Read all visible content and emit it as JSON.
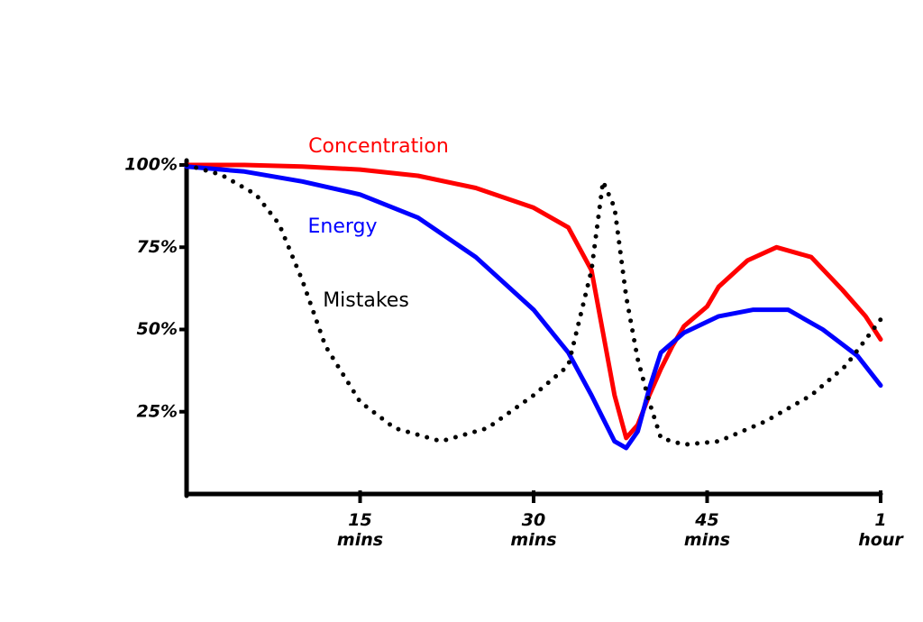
{
  "chart_data": {
    "type": "line",
    "xlim": [
      0,
      60
    ],
    "ylim": [
      0,
      100
    ],
    "xticks": [
      {
        "value": 15,
        "label": "15 mins"
      },
      {
        "value": 30,
        "label": "30 mins"
      },
      {
        "value": 45,
        "label": "45 mins"
      },
      {
        "value": 60,
        "label": "1 hour"
      }
    ],
    "yticks": [
      {
        "value": 25,
        "label": "25%"
      },
      {
        "value": 50,
        "label": "50%"
      },
      {
        "value": 75,
        "label": "75%"
      },
      {
        "value": 100,
        "label": "100%"
      }
    ],
    "series": [
      {
        "name": "Concentration",
        "color": "#ff0000",
        "style": "solid",
        "x": [
          0,
          5,
          10,
          15,
          20,
          25,
          30,
          33,
          35,
          36,
          37,
          38,
          39,
          40,
          41,
          42,
          43,
          45,
          46,
          48.5,
          51,
          54,
          56.7,
          58.7,
          60
        ],
        "values": [
          100,
          100,
          99.5,
          98.6,
          96.7,
          93,
          87,
          81,
          68,
          49,
          30,
          17,
          21,
          30,
          38,
          45,
          51,
          57,
          63,
          71,
          75,
          72,
          62,
          54,
          47
        ]
      },
      {
        "name": "Energy",
        "color": "#0000ff",
        "style": "solid",
        "x": [
          0,
          5,
          10,
          15,
          20,
          25,
          30,
          33,
          35,
          36,
          37,
          38,
          39,
          40,
          41,
          43,
          46,
          49,
          52,
          55,
          58,
          60
        ],
        "values": [
          99.5,
          98,
          95,
          91,
          84,
          72,
          56,
          43,
          30,
          23,
          16,
          14,
          19,
          32,
          43,
          49,
          54,
          56,
          56,
          50,
          42,
          33
        ]
      },
      {
        "name": "Mistakes",
        "color": "#000000",
        "style": "dotted",
        "x": [
          0,
          3,
          6,
          8,
          10,
          12,
          15,
          18,
          22,
          26,
          30,
          33,
          35,
          36,
          37,
          38,
          39,
          40,
          41,
          43,
          46,
          50,
          54,
          57,
          60
        ],
        "values": [
          100,
          97,
          91,
          82,
          65,
          45,
          28,
          20,
          16,
          20,
          30,
          39,
          68,
          95,
          87,
          60,
          41,
          28,
          17,
          15,
          16,
          22,
          30,
          39,
          53
        ]
      }
    ]
  }
}
